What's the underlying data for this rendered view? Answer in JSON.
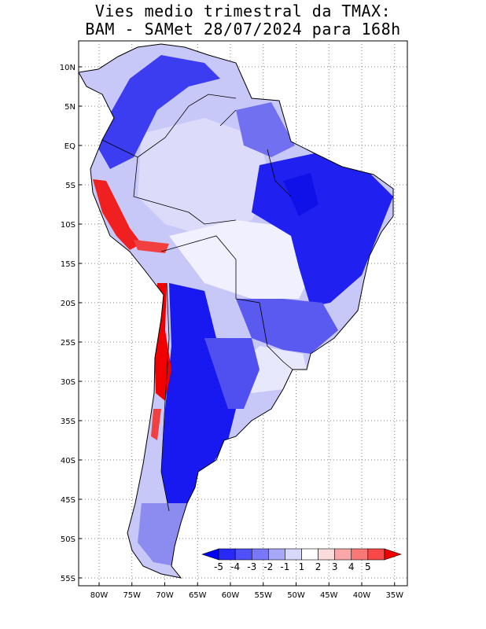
{
  "title_line1": "Vies medio trimestral da TMAX:",
  "title_line2": "BAM - SAMet 28/07/2024  para 168h",
  "lat_ticks": [
    {
      "label": "10N",
      "lat": 10
    },
    {
      "label": "5N",
      "lat": 5
    },
    {
      "label": "EQ",
      "lat": 0
    },
    {
      "label": "5S",
      "lat": -5
    },
    {
      "label": "10S",
      "lat": -10
    },
    {
      "label": "15S",
      "lat": -15
    },
    {
      "label": "20S",
      "lat": -20
    },
    {
      "label": "25S",
      "lat": -25
    },
    {
      "label": "30S",
      "lat": -30
    },
    {
      "label": "35S",
      "lat": -35
    },
    {
      "label": "40S",
      "lat": -40
    },
    {
      "label": "45S",
      "lat": -45
    },
    {
      "label": "50S",
      "lat": -50
    },
    {
      "label": "55S",
      "lat": -55
    }
  ],
  "lon_ticks": [
    {
      "label": "80W",
      "lon": -80
    },
    {
      "label": "75W",
      "lon": -75
    },
    {
      "label": "70W",
      "lon": -70
    },
    {
      "label": "65W",
      "lon": -65
    },
    {
      "label": "60W",
      "lon": -60
    },
    {
      "label": "55W",
      "lon": -55
    },
    {
      "label": "50W",
      "lon": -50
    },
    {
      "label": "45W",
      "lon": -45
    },
    {
      "label": "40W",
      "lon": -40
    },
    {
      "label": "35W",
      "lon": -35
    }
  ],
  "colorbar": {
    "labels": [
      "-5",
      "-4",
      "-3",
      "-2",
      "-1",
      "1",
      "2",
      "3",
      "4",
      "5"
    ],
    "colors": [
      "#0000f5",
      "#2828f8",
      "#5050f8",
      "#7878f8",
      "#a8a8f8",
      "#d8d8fa",
      "#ffffff",
      "#fadcdc",
      "#f8a8a8",
      "#f87878",
      "#f84848",
      "#f00000"
    ]
  },
  "colors": {
    "strong_blue": "#1a1af0",
    "medium_blue": "#4646f0",
    "light_blue": "#8c8cf0",
    "pale_blue": "#c8c8f8",
    "white": "#ffffff",
    "red": "#f00000"
  }
}
